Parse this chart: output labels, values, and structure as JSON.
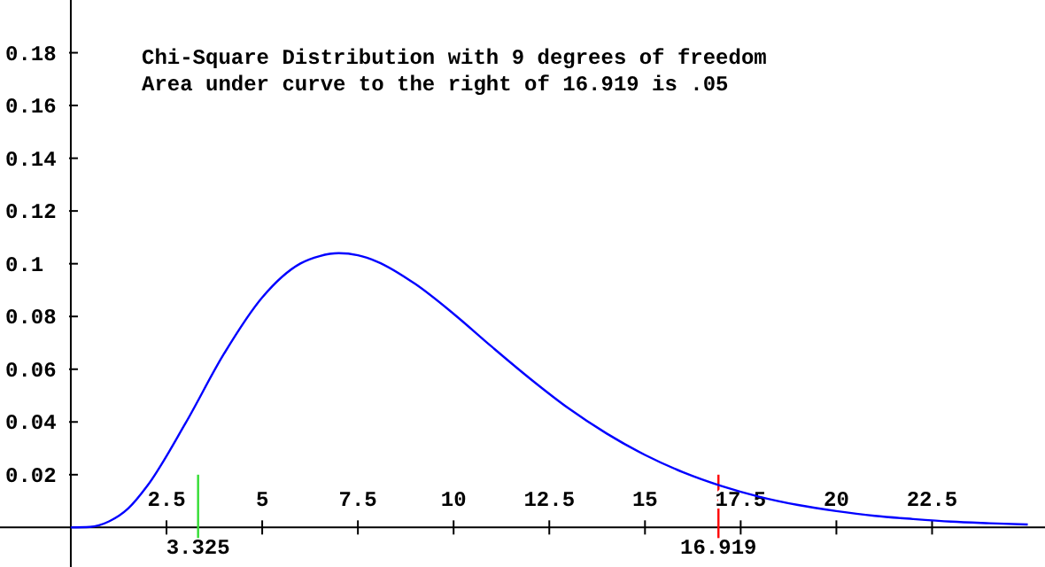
{
  "chart_data": {
    "type": "line",
    "title": "Chi-Square Distribution with 9 degrees of freedom",
    "subtitle": "Area under curve to the right of 16.919 is .05",
    "x": [
      0,
      0.5,
      1,
      1.5,
      2,
      3,
      4,
      5,
      6,
      6.5,
      7,
      7.5,
      8,
      9,
      10,
      11,
      12,
      13,
      14,
      15,
      16,
      17,
      18,
      19,
      20,
      21,
      22,
      23,
      24,
      25
    ],
    "series": [
      {
        "color": "#0000ff",
        "values": [
          0,
          0.0002,
          0.0023,
          0.0072,
          0.0158,
          0.0396,
          0.0658,
          0.0872,
          0.1001,
          0.1029,
          0.104,
          0.1032,
          0.1008,
          0.0923,
          0.081,
          0.0685,
          0.0564,
          0.0452,
          0.0356,
          0.0275,
          0.0209,
          0.0157,
          0.0116,
          0.0085,
          0.0062,
          0.0044,
          0.0032,
          0.0022,
          0.0016,
          0.0011
        ]
      }
    ],
    "xlim": [
      -1.85,
      25.45
    ],
    "ylim": [
      -0.015,
      0.2
    ],
    "xticks": [
      2.5,
      5,
      7.5,
      10,
      12.5,
      15,
      17.5,
      20,
      22.5
    ],
    "yticks": [
      0.02,
      0.04,
      0.06,
      0.08,
      0.1,
      0.12,
      0.14,
      0.16,
      0.18
    ],
    "ref_lines": [
      {
        "axis": "x",
        "value": 3.325,
        "label": "3.325",
        "color": "#33dd33"
      },
      {
        "axis": "x",
        "value": 16.919,
        "label": "16.919",
        "color": "#ff0000"
      }
    ],
    "marker": "none",
    "line_style": "solid"
  }
}
